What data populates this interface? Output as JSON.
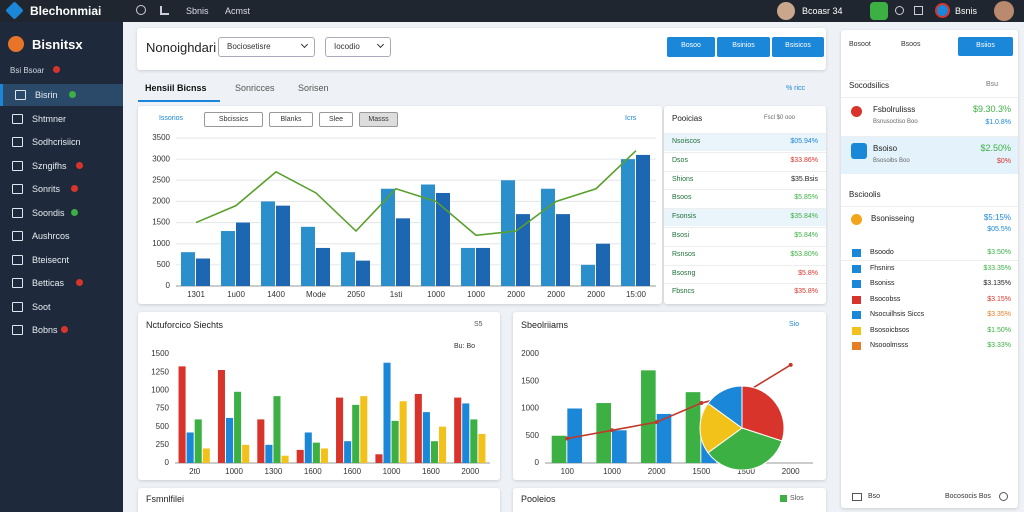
{
  "topbar": {
    "brand": "Blechonmiai",
    "links": [
      "Sbnis",
      "Acmst"
    ],
    "user": "Bcoasr 34",
    "user2": "Bsnis"
  },
  "sidebar": {
    "brand": "Bisnitsx",
    "subtitle": "Bsi Bsoar",
    "items": [
      {
        "label": "Bisrin",
        "badge": "#3cb043",
        "active": true
      },
      {
        "label": "Shtmner"
      },
      {
        "label": "Sodhcrisiicn"
      },
      {
        "label": "Szngifhs",
        "badge": "#d9342b"
      },
      {
        "label": "Sonrits",
        "badge": "#d9342b"
      },
      {
        "label": "Soondis",
        "badge": "#3cb043"
      },
      {
        "label": "Aushrcos"
      },
      {
        "label": "Bteisecnt"
      },
      {
        "label": "Betticas",
        "badge": "#d9342b"
      },
      {
        "label": "Soot"
      },
      {
        "label": "Bobns",
        "badge": "#d9342b"
      }
    ]
  },
  "toolbar": {
    "title": "Nonoighdari",
    "selects": [
      "Bociosetisre",
      "Iocodio"
    ],
    "buttons": [
      "Bosoo",
      "Bsinios",
      "Bsisicos"
    ]
  },
  "tabs": {
    "items": [
      "Hensiil Bicnss",
      "Sonricces",
      "Sorisen"
    ],
    "right": "% ricc"
  },
  "main_chart": {
    "type": "bar",
    "filters": [
      "Issorios",
      "Sbcissics",
      "Blanks",
      "Slee",
      "Masss"
    ],
    "corner": "Icrs",
    "categories": [
      "1301",
      "1u00",
      "1400",
      "Mode",
      "2050",
      "1sti",
      "1000",
      "1000",
      "2000",
      "2000",
      "2000",
      "15:00"
    ],
    "ylim": [
      0,
      3500
    ],
    "yticks": [
      0,
      500,
      1000,
      1500,
      2000,
      2500,
      3000,
      3500
    ],
    "grid": true,
    "series": [
      {
        "color": "#2b8fcb",
        "values": [
          800,
          1300,
          2000,
          1400,
          800,
          2300,
          2400,
          900,
          2500,
          2300,
          500,
          3000
        ]
      },
      {
        "color": "#1c66b2",
        "values": [
          650,
          1500,
          1900,
          900,
          600,
          1600,
          2200,
          900,
          1700,
          1700,
          1000,
          3100
        ]
      }
    ],
    "line": {
      "color": "#5aa02c",
      "values": [
        1500,
        1900,
        2700,
        2200,
        1300,
        2300,
        2000,
        1200,
        1300,
        2000,
        2300,
        3200
      ]
    }
  },
  "price_table": {
    "title": "Pooicias",
    "subtitle": "Fscl $0 ooo",
    "rows": [
      {
        "name": "Nsoiscos",
        "value": "$05.94%",
        "color": "#1a87d8"
      },
      {
        "name": "Dsos",
        "value": "$33.86%",
        "color": "#d9342b"
      },
      {
        "name": "Shions",
        "value": "$35.Bsis",
        "color": "#222222"
      },
      {
        "name": "Bsoos",
        "value": "$5.85%",
        "color": "#3cb043"
      },
      {
        "name": "Fsonsis",
        "value": "$35.84%",
        "color": "#3cb043"
      },
      {
        "name": "Bsosi",
        "value": "$5.84%",
        "color": "#3cb043"
      },
      {
        "name": "Rsnsos",
        "value": "$53.80%",
        "color": "#3cb043"
      },
      {
        "name": "Bsosng",
        "value": "$5.8%",
        "color": "#d9342b"
      },
      {
        "name": "Fbsncs",
        "value": "$35.8%",
        "color": "#d9342b"
      }
    ]
  },
  "grouped_chart": {
    "type": "bar",
    "title": "Nctuforcico Siechts",
    "menu": "S5",
    "note": "Bu: Bo",
    "categories": [
      "2t0",
      "1000",
      "1300",
      "1600",
      "1600",
      "1000",
      "1600",
      "2000"
    ],
    "ylim": [
      0,
      1500
    ],
    "yticks": [
      0,
      250,
      500,
      750,
      1000,
      1250,
      1500
    ],
    "series": [
      {
        "color": "#d9342b",
        "values": [
          1330,
          1280,
          600,
          180,
          900,
          120,
          950,
          900
        ]
      },
      {
        "color": "#1a87d8",
        "values": [
          420,
          620,
          250,
          420,
          300,
          1380,
          700,
          820
        ]
      },
      {
        "color": "#3cb043",
        "values": [
          600,
          980,
          920,
          280,
          800,
          580,
          300,
          600
        ]
      },
      {
        "color": "#f2c21b",
        "values": [
          200,
          250,
          100,
          200,
          920,
          850,
          500,
          400
        ]
      }
    ]
  },
  "combo_chart": {
    "type": "bar",
    "title": "Sbeolriiams",
    "menu": "Sio",
    "categories": [
      "100",
      "1000",
      "2000",
      "1500",
      "1500",
      "2000"
    ],
    "ylim": [
      0,
      2000
    ],
    "yticks": [
      0,
      500,
      1000,
      1500,
      2000
    ],
    "series": [
      {
        "color": "#3cb043",
        "values": [
          500,
          1100,
          1700,
          1300,
          1050,
          0
        ]
      },
      {
        "color": "#1a87d8",
        "values": [
          1000,
          600,
          900,
          650,
          550,
          0
        ]
      }
    ],
    "line": {
      "color": "#c0392b",
      "values": [
        450,
        600,
        750,
        1100,
        1300,
        1800
      ]
    },
    "pie": {
      "values": [
        30,
        35,
        20,
        15
      ],
      "colors": [
        "#d9342b",
        "#3cb043",
        "#f2c21b",
        "#1a87d8"
      ]
    }
  },
  "bottom_cards": [
    {
      "title": "Fsmnlfilei"
    },
    {
      "title": "Pooleios",
      "menu": "Slos"
    }
  ],
  "right_panel": {
    "top": [
      "Bosoot",
      "Bsoos"
    ],
    "button": "Bsiios",
    "section1": "Socodsilics",
    "section1_menu": "Bsu",
    "featured": [
      {
        "name": "Fsbolrulisss",
        "sub": "Bsnusoctiso Boo",
        "value": "$9.30.3%",
        "value2": "$1.0.8%",
        "color": "#3cb043",
        "color2": "#1a87d8"
      },
      {
        "name": "Bsoiso",
        "sub": "Bsosoibs Boo",
        "value": "$2.50%",
        "value2": "$0%",
        "color": "#3cb043",
        "color2": "#d9342b"
      }
    ],
    "section2": "Bscioolis",
    "highlight": {
      "name": "Bsonisseing",
      "value": "$5:15%",
      "value2": "$05.5%",
      "color": "#1a87d8"
    },
    "list": [
      {
        "name": "Bsoodo",
        "value": "$3.50%",
        "color": "#3cb043",
        "icon": "#1a87d8"
      },
      {
        "name": "Fhsnins",
        "value": "$33.35%",
        "color": "#3cb043",
        "icon": "#1a87d8"
      },
      {
        "name": "Bsoniss",
        "value": "$3.135%",
        "color": "#222222",
        "icon": "#1a87d8"
      },
      {
        "name": "Bsocobss",
        "value": "$3.15%",
        "color": "#d9342b",
        "icon": "#d9342b"
      },
      {
        "name": "Nsocuilhsis Siccs",
        "value": "$3.35%",
        "color": "#e67e22",
        "icon": "#1a87d8"
      },
      {
        "name": "Bsosoicbsos",
        "value": "$1.50%",
        "color": "#3cb043",
        "icon": "#f2c21b"
      },
      {
        "name": "Nsooolmsss",
        "value": "$3.33%",
        "color": "#3cb043",
        "icon": "#e67e22"
      }
    ],
    "footer": [
      "Bso",
      "Bocosocis Bos"
    ]
  }
}
